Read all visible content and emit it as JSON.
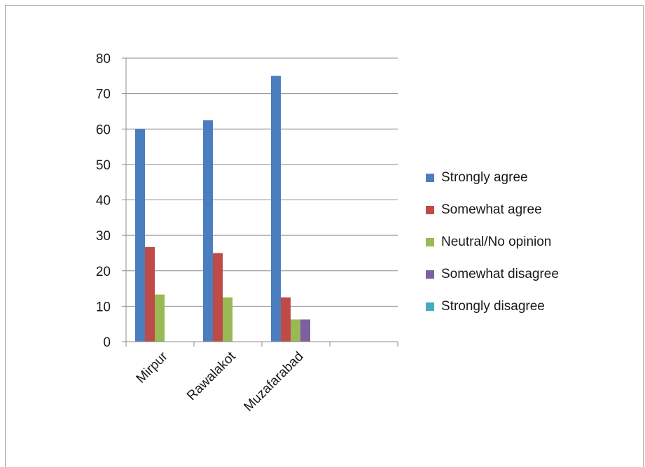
{
  "chart_data": {
    "type": "bar",
    "title": "",
    "xlabel": "",
    "ylabel": "",
    "categories": [
      "Mirpur",
      "Rawalakot",
      "Muzafarabad",
      ""
    ],
    "ylim": [
      0,
      80
    ],
    "yticks": [
      0,
      10,
      20,
      30,
      40,
      50,
      60,
      70,
      80
    ],
    "grid": true,
    "legend_position": "right",
    "series": [
      {
        "name": "Strongly agree",
        "color": "#4a7ebf",
        "values": [
          60,
          62.5,
          75,
          null
        ]
      },
      {
        "name": "Somewhat agree",
        "color": "#be4b48",
        "values": [
          26.7,
          25,
          12.5,
          null
        ]
      },
      {
        "name": "Neutral/No opinion",
        "color": "#98b954",
        "values": [
          13.3,
          12.5,
          6.25,
          null
        ]
      },
      {
        "name": "Somewhat disagree",
        "color": "#7d60a0",
        "values": [
          0,
          0,
          6.25,
          null
        ]
      },
      {
        "name": "Strongly disagree",
        "color": "#46aac5",
        "values": [
          0,
          0,
          0,
          null
        ]
      }
    ]
  }
}
